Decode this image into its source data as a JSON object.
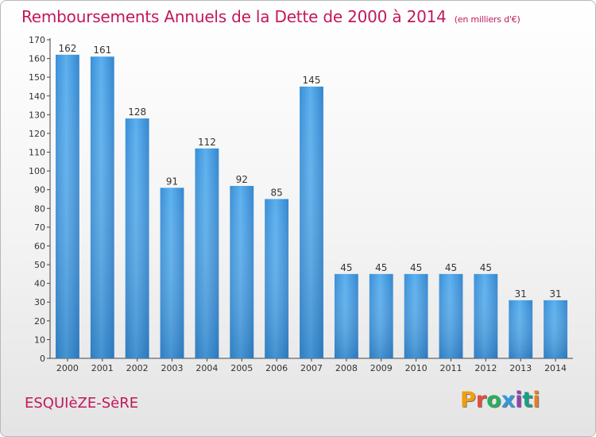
{
  "header": {
    "title": "Remboursements Annuels de la Dette de 2000 à 2014",
    "unit_note": "(en milliers d'€)"
  },
  "footer": {
    "commune": "ESQUIèZE-SèRE",
    "logo_text": "Proxiti",
    "logo_colors": [
      "#f39c12",
      "#e74c3c",
      "#27ae60",
      "#3498db",
      "#8e44ad",
      "#16a085",
      "#e67e22"
    ]
  },
  "chart_data": {
    "type": "bar",
    "title": "Remboursements Annuels de la Dette de 2000 à 2014",
    "categories": [
      "2000",
      "2001",
      "2002",
      "2003",
      "2004",
      "2005",
      "2006",
      "2007",
      "2008",
      "2009",
      "2010",
      "2011",
      "2012",
      "2013",
      "2014"
    ],
    "values": [
      162,
      161,
      128,
      91,
      112,
      92,
      85,
      145,
      45,
      45,
      45,
      45,
      45,
      31,
      31
    ],
    "ylim": [
      0,
      170
    ],
    "ytick_step": 10,
    "grid": false,
    "bar_color": "#4fa3e3",
    "bar_color_dark": "#2f7fc4"
  }
}
